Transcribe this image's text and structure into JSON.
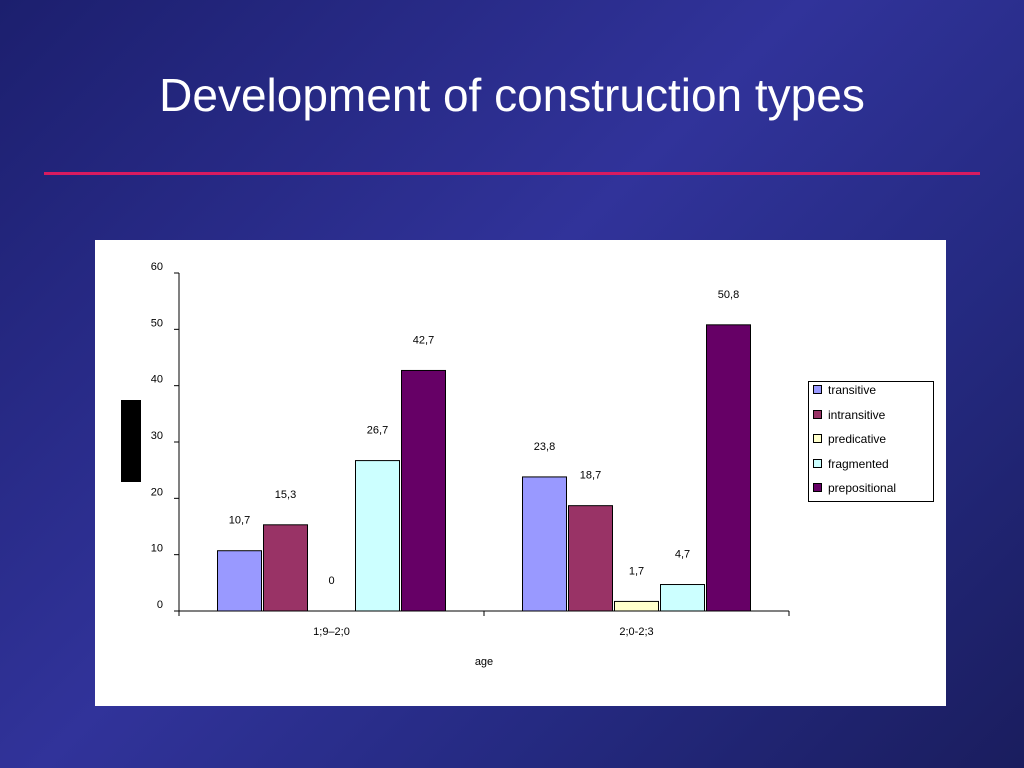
{
  "slide": {
    "title": "Development of construction types",
    "rule_color": "#d81b60"
  },
  "chart_data": {
    "type": "bar",
    "categories": [
      "1;9–2;0",
      "2;0-2;3"
    ],
    "series": [
      {
        "name": "transitive",
        "color": "#9999ff",
        "values": [
          10.7,
          23.8
        ],
        "labels": [
          "10,7",
          "23,8"
        ]
      },
      {
        "name": "intransitive",
        "color": "#993366",
        "values": [
          15.3,
          18.7
        ],
        "labels": [
          "15,3",
          "18,7"
        ]
      },
      {
        "name": "predicative",
        "color": "#ffffcc",
        "values": [
          0,
          1.7
        ],
        "labels": [
          "0",
          "1,7"
        ]
      },
      {
        "name": "fragmented",
        "color": "#ccffff",
        "values": [
          26.7,
          4.7
        ],
        "labels": [
          "26,7",
          "4,7"
        ]
      },
      {
        "name": "prepositional",
        "color": "#660066",
        "values": [
          42.7,
          50.8
        ],
        "labels": [
          "42,7",
          "50,8"
        ]
      }
    ],
    "xlabel": "age",
    "ylabel": "",
    "ylim": [
      0,
      60
    ],
    "yticks": [
      0,
      10,
      20,
      30,
      40,
      50,
      60
    ],
    "legend_position": "right",
    "grid": false
  }
}
